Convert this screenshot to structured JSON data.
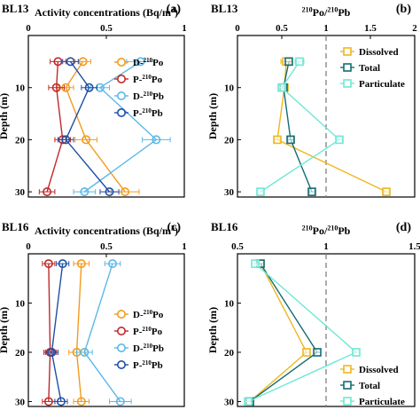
{
  "chart_data": [
    {
      "panel": "a",
      "site": "BL13",
      "type": "line",
      "title": "Activity concentrations (Bq/m3)",
      "xlabel": "Activity concentrations (Bq/m3)",
      "ylabel": "Depth (m)",
      "xlim": [
        0,
        1
      ],
      "xticks": [
        "0",
        "0.5",
        "1"
      ],
      "ylim": [
        0,
        31
      ],
      "yticks": [
        "10",
        "20",
        "30"
      ],
      "legend_placement": "right-middle",
      "series": [
        {
          "name": "D-210Po",
          "color": "#F39A1E",
          "marker": "circle",
          "points": [
            {
              "depth": 5,
              "value": 0.35,
              "err": 0.05
            },
            {
              "depth": 10,
              "value": 0.24,
              "err": 0.05
            },
            {
              "depth": 20,
              "value": 0.37,
              "err": 0.07
            },
            {
              "depth": 30,
              "value": 0.62,
              "err": 0.09
            }
          ]
        },
        {
          "name": "P-210Po",
          "color": "#C0282A",
          "marker": "circle",
          "points": [
            {
              "depth": 5,
              "value": 0.19,
              "err": 0.05
            },
            {
              "depth": 10,
              "value": 0.18,
              "err": 0.05
            },
            {
              "depth": 20,
              "value": 0.22,
              "err": 0.05
            },
            {
              "depth": 30,
              "value": 0.12,
              "err": 0.05
            }
          ]
        },
        {
          "name": "D-210Pb",
          "color": "#5BB8E8",
          "marker": "circle",
          "points": [
            {
              "depth": 5,
              "value": 0.72,
              "err": 0.09
            },
            {
              "depth": 10,
              "value": 0.46,
              "err": 0.06
            },
            {
              "depth": 20,
              "value": 0.82,
              "err": 0.09
            },
            {
              "depth": 30,
              "value": 0.36,
              "err": 0.07
            }
          ]
        },
        {
          "name": "P-210Pb",
          "color": "#1F4EA6",
          "marker": "circle",
          "points": [
            {
              "depth": 5,
              "value": 0.27,
              "err": 0.05
            },
            {
              "depth": 10,
              "value": 0.39,
              "err": 0.05
            },
            {
              "depth": 20,
              "value": 0.24,
              "err": 0.05
            },
            {
              "depth": 30,
              "value": 0.52,
              "err": 0.06
            }
          ]
        }
      ]
    },
    {
      "panel": "b",
      "site": "BL13",
      "type": "line",
      "title": "210Po/210Pb",
      "xlabel": "210Po/210Pb",
      "ylabel": "Depth (m)",
      "xlim": [
        0,
        2
      ],
      "xticks": [
        "0",
        "0.5",
        "1",
        "1.5",
        "2"
      ],
      "ylim": [
        0,
        31
      ],
      "yticks": [
        "10",
        "20",
        "30"
      ],
      "reference_line_x": 1,
      "legend_placement": "top-right",
      "series": [
        {
          "name": "Dissolved",
          "color": "#F2B61D",
          "marker": "square",
          "points": [
            {
              "depth": 5,
              "value": 0.55,
              "err": 0.06
            },
            {
              "depth": 10,
              "value": 0.53,
              "err": 0.03
            },
            {
              "depth": 20,
              "value": 0.45,
              "err": 0.03
            },
            {
              "depth": 30,
              "value": 1.68,
              "err": 0.03
            }
          ]
        },
        {
          "name": "Total",
          "color": "#136C73",
          "marker": "square",
          "points": [
            {
              "depth": 5,
              "value": 0.58,
              "err": 0.04
            },
            {
              "depth": 10,
              "value": 0.52,
              "err": 0.03
            },
            {
              "depth": 20,
              "value": 0.6,
              "err": 0.03
            },
            {
              "depth": 30,
              "value": 0.84,
              "err": 0.03
            }
          ]
        },
        {
          "name": "Particulate",
          "color": "#6EE8D4",
          "marker": "square",
          "points": [
            {
              "depth": 5,
              "value": 0.7,
              "err": 0.05
            },
            {
              "depth": 10,
              "value": 0.5,
              "err": 0.03
            },
            {
              "depth": 20,
              "value": 1.15,
              "err": 0.03
            },
            {
              "depth": 30,
              "value": 0.26,
              "err": 0.03
            }
          ]
        }
      ]
    },
    {
      "panel": "c",
      "site": "BL16",
      "type": "line",
      "title": "Activity concentrations (Bq/m3)",
      "xlabel": "Activity concentrations (Bq/m3)",
      "ylabel": "Depth (m)",
      "xlim": [
        0,
        1
      ],
      "xticks": [
        "0",
        "0.5",
        "1"
      ],
      "ylim": [
        0,
        31
      ],
      "yticks": [
        "10",
        "20",
        "30"
      ],
      "legend_placement": "bottom-right",
      "series": [
        {
          "name": "D-210Po",
          "color": "#F39A1E",
          "marker": "circle",
          "points": [
            {
              "depth": 2,
              "value": 0.34,
              "err": 0.05
            },
            {
              "depth": 20,
              "value": 0.31,
              "err": 0.05
            },
            {
              "depth": 30,
              "value": 0.34,
              "err": 0.05
            }
          ]
        },
        {
          "name": "P-210Po",
          "color": "#C0282A",
          "marker": "circle",
          "points": [
            {
              "depth": 2,
              "value": 0.13,
              "err": 0.04
            },
            {
              "depth": 20,
              "value": 0.14,
              "err": 0.04
            },
            {
              "depth": 30,
              "value": 0.13,
              "err": 0.04
            }
          ]
        },
        {
          "name": "D-210Pb",
          "color": "#5BB8E8",
          "marker": "circle",
          "points": [
            {
              "depth": 2,
              "value": 0.54,
              "err": 0.05
            },
            {
              "depth": 20,
              "value": 0.36,
              "err": 0.05
            },
            {
              "depth": 30,
              "value": 0.59,
              "err": 0.07
            }
          ]
        },
        {
          "name": "P-210Pb",
          "color": "#1F4EA6",
          "marker": "circle",
          "points": [
            {
              "depth": 2,
              "value": 0.22,
              "err": 0.04
            },
            {
              "depth": 20,
              "value": 0.15,
              "err": 0.04
            },
            {
              "depth": 30,
              "value": 0.21,
              "err": 0.04
            }
          ]
        }
      ]
    },
    {
      "panel": "d",
      "site": "BL16",
      "type": "line",
      "title": "210Po/210Pb",
      "xlabel": "210Po/210Pb",
      "ylabel": "Depth (m)",
      "xlim": [
        0.5,
        1.5
      ],
      "xticks": [
        "0.5",
        "1",
        "1.5"
      ],
      "ylim": [
        0,
        31
      ],
      "yticks": [
        "10",
        "20",
        "30"
      ],
      "reference_line_x": 1,
      "legend_placement": "bottom-right",
      "series": [
        {
          "name": "Dissolved",
          "color": "#F2B61D",
          "marker": "square",
          "points": [
            {
              "depth": 2,
              "value": 0.63,
              "err": 0.02
            },
            {
              "depth": 20,
              "value": 0.89,
              "err": 0.02
            },
            {
              "depth": 30,
              "value": 0.57,
              "err": 0.02
            }
          ]
        },
        {
          "name": "Total",
          "color": "#136C73",
          "marker": "square",
          "points": [
            {
              "depth": 2,
              "value": 0.63,
              "err": 0.02
            },
            {
              "depth": 20,
              "value": 0.95,
              "err": 0.02
            },
            {
              "depth": 30,
              "value": 0.57,
              "err": 0.02
            }
          ]
        },
        {
          "name": "Particulate",
          "color": "#6EE8D4",
          "marker": "square",
          "points": [
            {
              "depth": 2,
              "value": 0.6,
              "err": 0.02
            },
            {
              "depth": 20,
              "value": 1.17,
              "err": 0.02
            },
            {
              "depth": 30,
              "value": 0.56,
              "err": 0.02
            }
          ]
        }
      ]
    }
  ]
}
